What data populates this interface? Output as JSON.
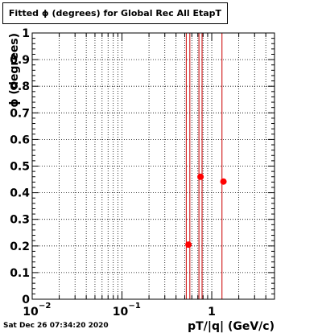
{
  "header": {
    "title": "Fitted ϕ (degrees) for Global Rec All EtapT"
  },
  "footer": {
    "timestamp": "Sat Dec 26 07:34:20 2020"
  },
  "colors": {
    "marker": "#ff0000",
    "line": "#cc0000",
    "axis": "#000000",
    "grid": "#000000",
    "background": "#ffffff"
  },
  "chart_data": {
    "type": "scatter",
    "title": "Fitted ϕ (degrees) for Global Rec All EtapT",
    "xlabel": "pT/|q| (GeV/c)",
    "ylabel": "ϕ (degrees)",
    "xscale": "log",
    "xlim": [
      0.01,
      5
    ],
    "ylim": [
      0,
      1
    ],
    "grid": true,
    "x_ticks": [
      {
        "value": 0.01,
        "base": "10",
        "exp": "−2"
      },
      {
        "value": 0.1,
        "base": "10",
        "exp": "−1"
      },
      {
        "value": 1,
        "base": "1",
        "exp": ""
      }
    ],
    "y_ticks": [
      "0",
      "0.1",
      "0.2",
      "0.3",
      "0.4",
      "0.5",
      "0.6",
      "0.7",
      "0.8",
      "0.9",
      "1"
    ],
    "vertical_lines": [
      0.52,
      0.57,
      0.72,
      0.78,
      1.3
    ],
    "series": [
      {
        "points": [
          {
            "x": 0.55,
            "y": 0.205
          },
          {
            "x": 0.75,
            "y": 0.46
          },
          {
            "x": 1.35,
            "y": 0.442
          }
        ]
      }
    ]
  }
}
